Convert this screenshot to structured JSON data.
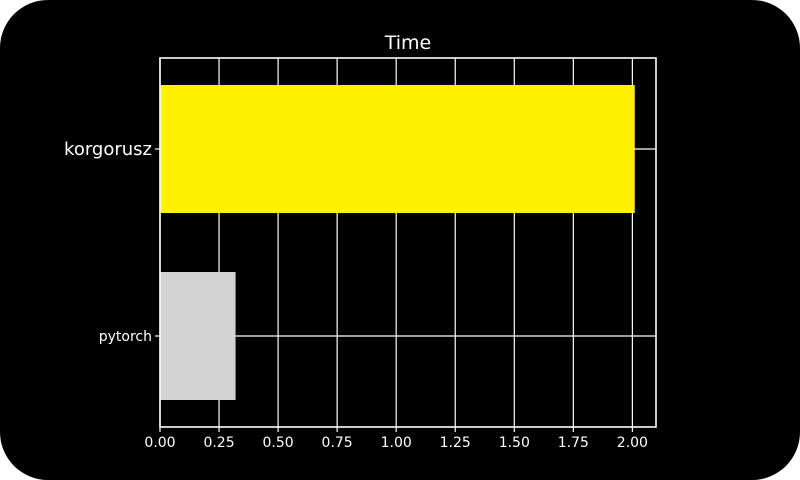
{
  "chart_data": {
    "type": "bar",
    "orientation": "horizontal",
    "title": "Time",
    "xlabel": "",
    "ylabel": "",
    "categories": [
      "korgorusz",
      "pytorch"
    ],
    "values": [
      2.01,
      0.32
    ],
    "bar_colors": [
      "#fff200",
      "#d3d3d3"
    ],
    "xlim": [
      0,
      2.1
    ],
    "xticks": [
      "0.00",
      "0.25",
      "0.50",
      "0.75",
      "1.00",
      "1.25",
      "1.50",
      "1.75",
      "2.00"
    ],
    "grid": true,
    "legend": "none",
    "colors": {
      "background": "#000000",
      "axis": "#ffffff",
      "grid": "#ffffff"
    }
  }
}
